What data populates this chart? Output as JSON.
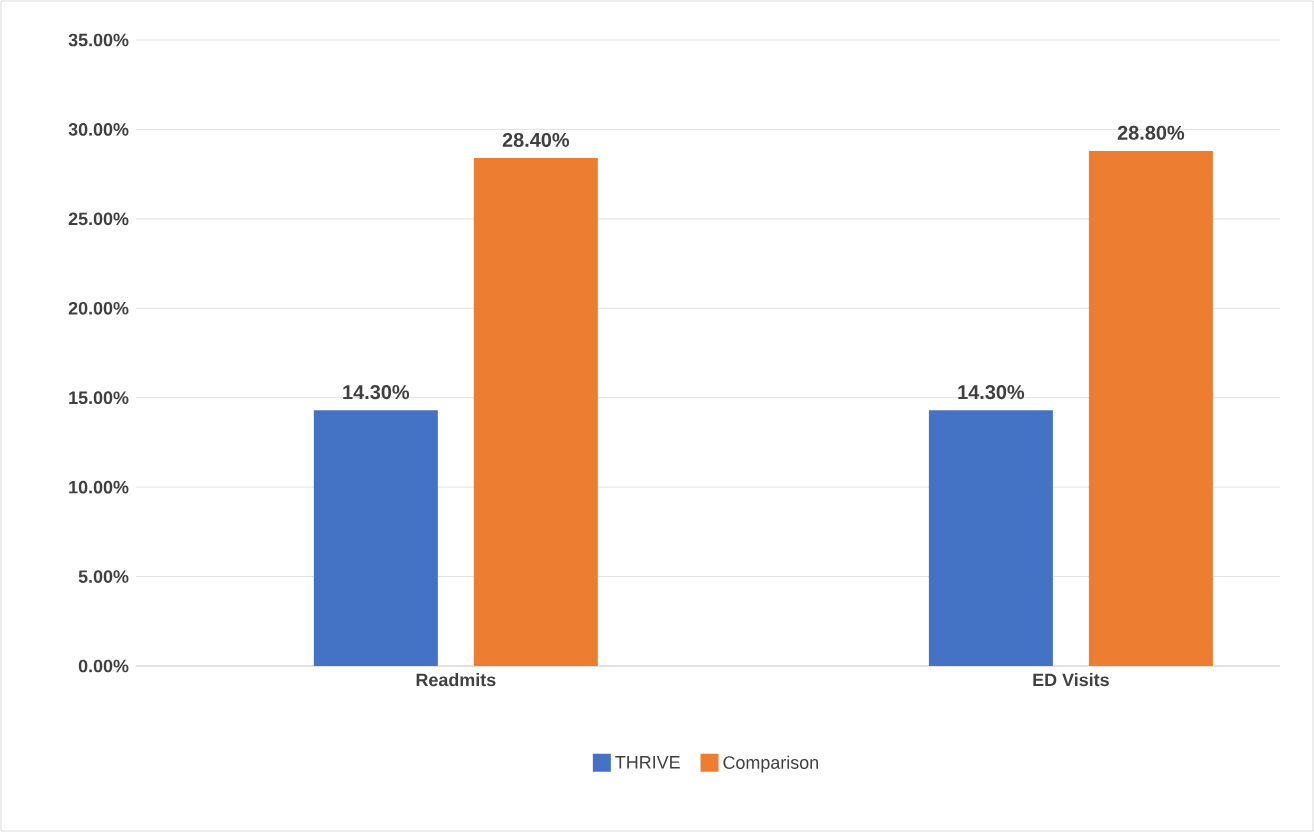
{
  "chart_data": {
    "type": "bar",
    "categories": [
      "Readmits",
      "ED Visits"
    ],
    "series": [
      {
        "name": "THRIVE",
        "color": "#4472c4",
        "values": [
          14.3,
          14.3
        ],
        "value_labels": [
          "14.30%",
          "14.30%"
        ]
      },
      {
        "name": "Comparison",
        "color": "#ed7d31",
        "values": [
          28.4,
          28.8
        ],
        "value_labels": [
          "28.40%",
          "28.80%"
        ]
      }
    ],
    "ylim": [
      0,
      35
    ],
    "yticks": [
      {
        "value": 0,
        "label": "0.00%"
      },
      {
        "value": 5,
        "label": "5.00%"
      },
      {
        "value": 10,
        "label": "10.00%"
      },
      {
        "value": 15,
        "label": "15.00%"
      },
      {
        "value": 20,
        "label": "20.00%"
      },
      {
        "value": 25,
        "label": "25.00%"
      },
      {
        "value": 30,
        "label": "30.00%"
      },
      {
        "value": 35,
        "label": "35.00%"
      }
    ],
    "grid": "y",
    "legend": "bottom"
  }
}
